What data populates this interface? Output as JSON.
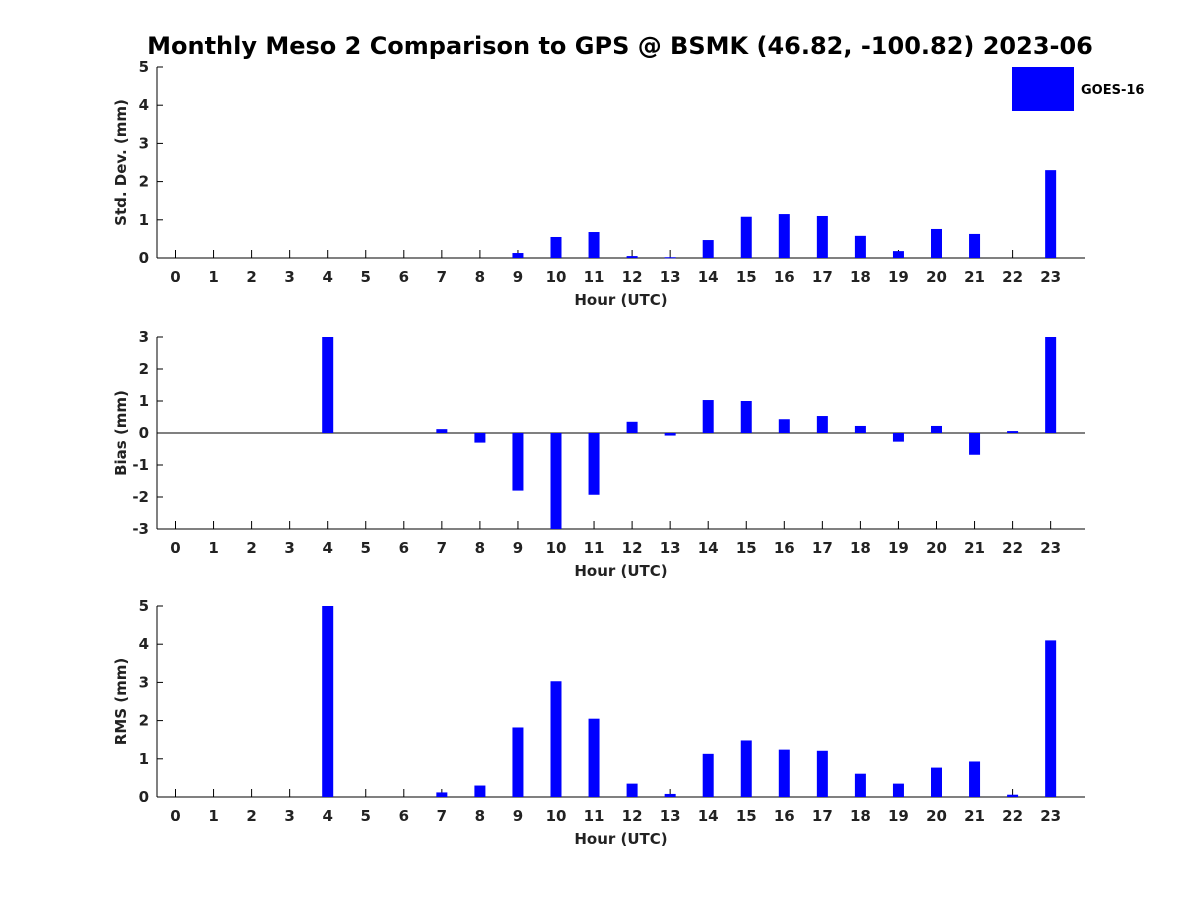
{
  "title": "Monthly Meso 2 Comparison to GPS @ BSMK (46.82, -100.82) 2023-06",
  "legend": {
    "label": "GOES-16",
    "color": "#0000ff"
  },
  "chart_data": [
    {
      "type": "bar",
      "ylabel": "Std. Dev. (mm)",
      "xlabel": "Hour (UTC)",
      "ylim": [
        0,
        5
      ],
      "yticks": [
        0,
        1,
        2,
        3,
        4,
        5
      ],
      "categories": [
        "0",
        "1",
        "2",
        "3",
        "4",
        "5",
        "6",
        "7",
        "8",
        "9",
        "10",
        "11",
        "12",
        "13",
        "14",
        "15",
        "16",
        "17",
        "18",
        "19",
        "20",
        "21",
        "22",
        "23"
      ],
      "series": [
        {
          "name": "GOES-16",
          "values": [
            0,
            0,
            0,
            0,
            0,
            0,
            0,
            0,
            0,
            0.13,
            0.55,
            0.68,
            0.05,
            0.02,
            0.47,
            1.08,
            1.15,
            1.1,
            0.58,
            0.18,
            0.76,
            0.63,
            0,
            2.3
          ]
        }
      ]
    },
    {
      "type": "bar",
      "ylabel": "Bias (mm)",
      "xlabel": "Hour (UTC)",
      "ylim": [
        -3,
        3
      ],
      "yticks": [
        -3,
        -2,
        -1,
        0,
        1,
        2,
        3
      ],
      "categories": [
        "0",
        "1",
        "2",
        "3",
        "4",
        "5",
        "6",
        "7",
        "8",
        "9",
        "10",
        "11",
        "12",
        "13",
        "14",
        "15",
        "16",
        "17",
        "18",
        "19",
        "20",
        "21",
        "22",
        "23"
      ],
      "series": [
        {
          "name": "GOES-16",
          "values": [
            0,
            0,
            0,
            0,
            3.0,
            0,
            0,
            0.12,
            -0.3,
            -1.8,
            -3.0,
            -1.93,
            0.35,
            -0.08,
            1.03,
            1.0,
            0.43,
            0.53,
            0.22,
            -0.27,
            0.22,
            -0.68,
            0.06,
            3.0
          ]
        }
      ]
    },
    {
      "type": "bar",
      "ylabel": "RMS (mm)",
      "xlabel": "Hour (UTC)",
      "ylim": [
        0,
        5
      ],
      "yticks": [
        0,
        1,
        2,
        3,
        4,
        5
      ],
      "categories": [
        "0",
        "1",
        "2",
        "3",
        "4",
        "5",
        "6",
        "7",
        "8",
        "9",
        "10",
        "11",
        "12",
        "13",
        "14",
        "15",
        "16",
        "17",
        "18",
        "19",
        "20",
        "21",
        "22",
        "23"
      ],
      "series": [
        {
          "name": "GOES-16",
          "values": [
            0,
            0,
            0,
            0,
            5.0,
            0,
            0,
            0.12,
            0.3,
            1.82,
            3.03,
            2.05,
            0.35,
            0.08,
            1.13,
            1.48,
            1.24,
            1.21,
            0.61,
            0.35,
            0.77,
            0.93,
            0.06,
            4.1
          ]
        }
      ]
    }
  ]
}
